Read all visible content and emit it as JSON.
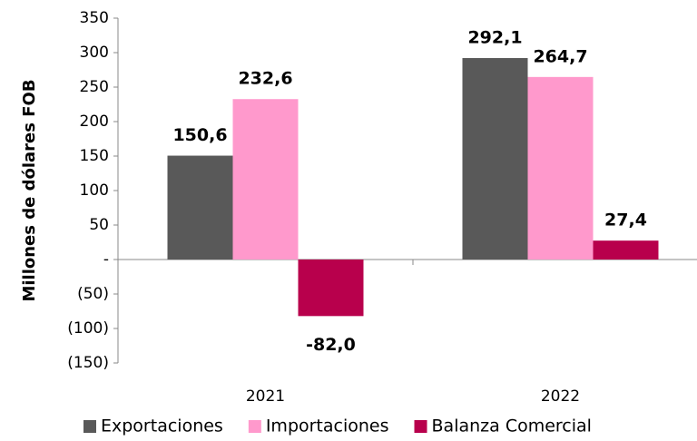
{
  "chart_data": {
    "type": "bar",
    "y_label": "Millones de dólares FOB",
    "categories": [
      "2021",
      "2022"
    ],
    "series": [
      {
        "name": "Exportaciones",
        "color": "#595959",
        "values": [
          150.6,
          292.1
        ],
        "value_labels": [
          "150,6",
          "292,1"
        ]
      },
      {
        "name": "Importaciones",
        "color": "#ff99cc",
        "values": [
          232.6,
          264.7
        ],
        "value_labels": [
          "232,6",
          "264,7"
        ]
      },
      {
        "name": "Balanza Comercial",
        "color": "#b8004c",
        "values": [
          -82.0,
          27.4
        ],
        "value_labels": [
          "-82,0",
          "27,4"
        ]
      }
    ],
    "ylim": [
      -150,
      350
    ],
    "yticks": [
      350,
      300,
      250,
      200,
      150,
      100,
      50,
      {
        "value": 0,
        "label": "-"
      },
      {
        "value": -50,
        "label": "(50)"
      },
      {
        "value": -100,
        "label": "(100)"
      },
      {
        "value": -150,
        "label": "(150)"
      }
    ],
    "legend": "bottom"
  }
}
